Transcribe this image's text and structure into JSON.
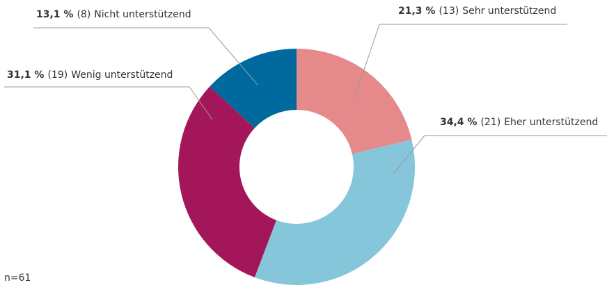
{
  "chart_data": {
    "type": "donut",
    "categories": [
      "Sehr unterstützend",
      "Eher unterstützend",
      "Wenig unterstützend",
      "Nicht unterstützend"
    ],
    "values": [
      21.3,
      34.4,
      31.1,
      13.1
    ],
    "value_labels": [
      "21,3 %",
      "34,4 %",
      "31,1 %",
      "13,1 %"
    ],
    "counts": [
      13,
      21,
      19,
      8
    ],
    "count_labels": [
      "(13)",
      "(21)",
      "(19)",
      "(8)"
    ],
    "colors": [
      "#e5898b",
      "#86c6da",
      "#a3175a",
      "#006a9e"
    ],
    "note": "n=61"
  }
}
